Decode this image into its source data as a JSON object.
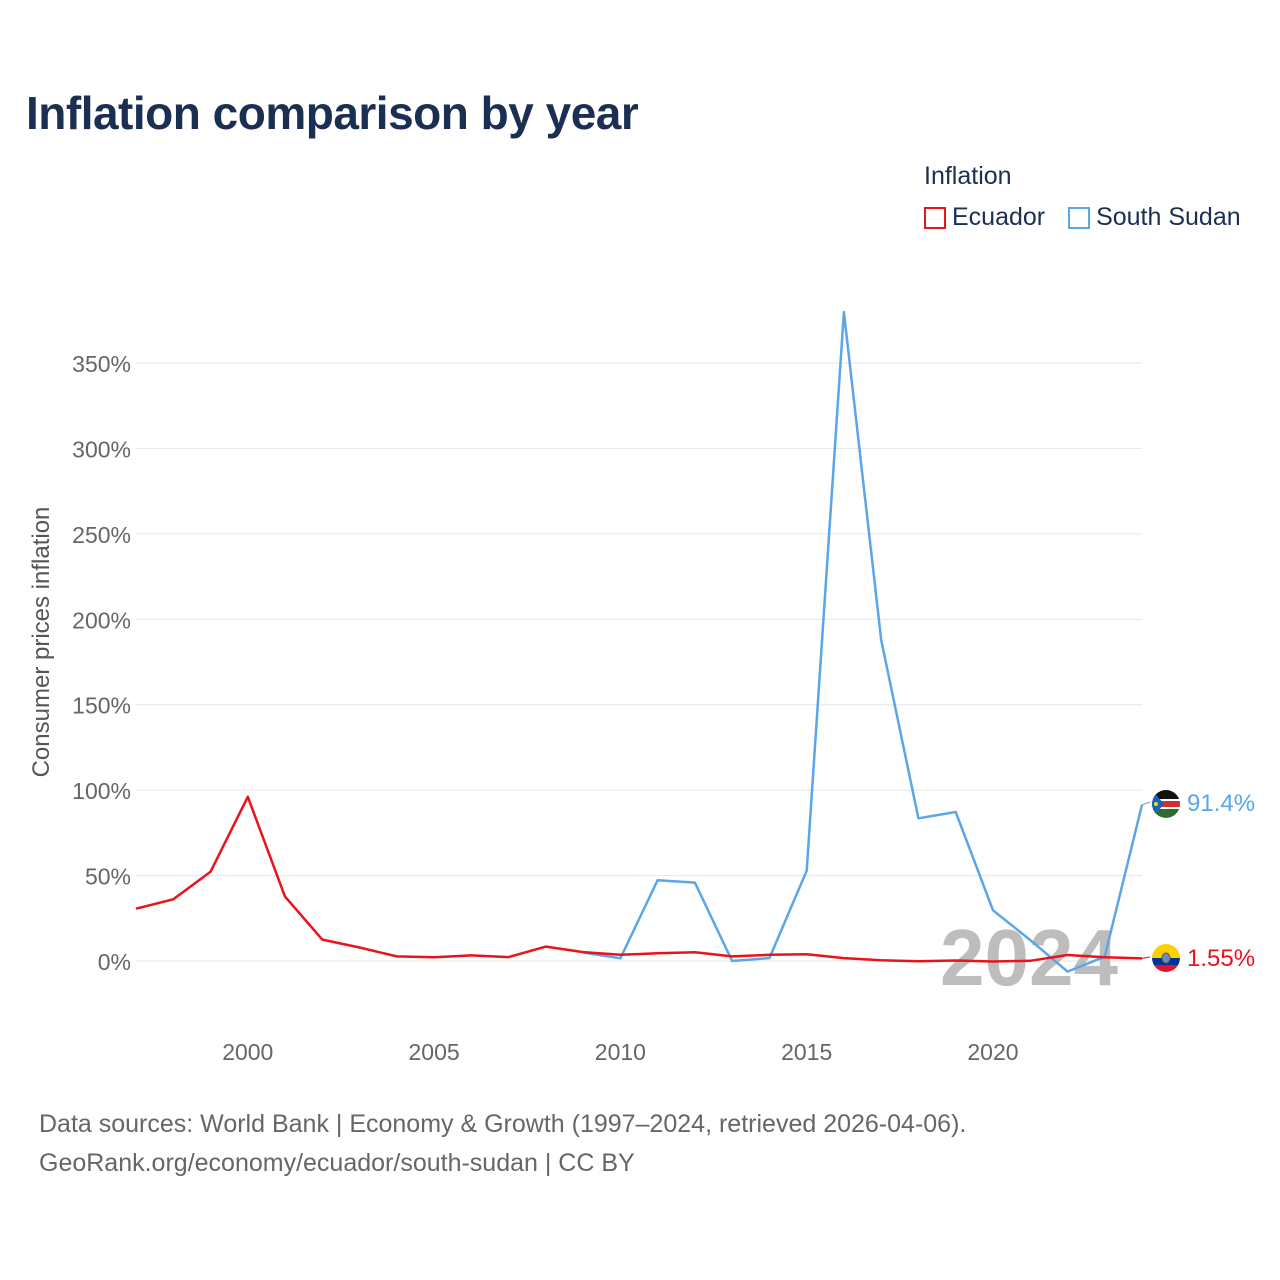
{
  "title": "Inflation comparison by year",
  "legend": {
    "title": "Inflation",
    "items": [
      {
        "label": "Ecuador",
        "color": "#e8131b"
      },
      {
        "label": "South Sudan",
        "color": "#5aa6e8"
      }
    ]
  },
  "footer": {
    "line1": "Data sources: World Bank | Economy & Growth (1997–2024, retrieved 2026-04-06).",
    "line2": "GeoRank.org/economy/ecuador/south-sudan | CC BY"
  },
  "chart_data": {
    "type": "line",
    "title": "Inflation comparison by year",
    "xlabel": "",
    "ylabel": "Consumer prices inflation",
    "xlim": [
      1997,
      2024
    ],
    "ylim": [
      -25,
      400
    ],
    "x_ticks": [
      2000,
      2005,
      2010,
      2015,
      2020
    ],
    "y_ticks": [
      0,
      50,
      100,
      150,
      200,
      250,
      300,
      350
    ],
    "y_tick_labels": [
      "0%",
      "50%",
      "100%",
      "150%",
      "200%",
      "250%",
      "300%",
      "350%"
    ],
    "grid": true,
    "year_watermark": "2024",
    "series": [
      {
        "name": "Ecuador",
        "color": "#e8131b",
        "end_label": "1.55%",
        "x": [
          1997,
          1998,
          1999,
          2000,
          2001,
          2002,
          2003,
          2004,
          2005,
          2006,
          2007,
          2008,
          2009,
          2010,
          2011,
          2012,
          2013,
          2014,
          2015,
          2016,
          2017,
          2018,
          2019,
          2020,
          2021,
          2022,
          2023,
          2024
        ],
        "values": [
          30.6,
          36.1,
          52.2,
          96.1,
          37.7,
          12.5,
          7.9,
          2.7,
          2.2,
          3.3,
          2.3,
          8.4,
          5.2,
          3.6,
          4.5,
          5.1,
          2.7,
          3.6,
          4.0,
          1.7,
          0.4,
          -0.2,
          0.3,
          -0.3,
          0.1,
          3.5,
          2.2,
          1.55
        ]
      },
      {
        "name": "South Sudan",
        "color": "#5aa6e8",
        "end_label": "91.4%",
        "x": [
          2009,
          2010,
          2011,
          2012,
          2013,
          2014,
          2015,
          2016,
          2017,
          2018,
          2019,
          2020,
          2021,
          2022,
          2023,
          2024
        ],
        "values": [
          5.0,
          1.6,
          47.3,
          45.9,
          0.0,
          1.7,
          52.8,
          379.8,
          187.9,
          83.5,
          87.2,
          29.7,
          12.3,
          -6.2,
          2.5,
          91.4
        ]
      }
    ]
  }
}
